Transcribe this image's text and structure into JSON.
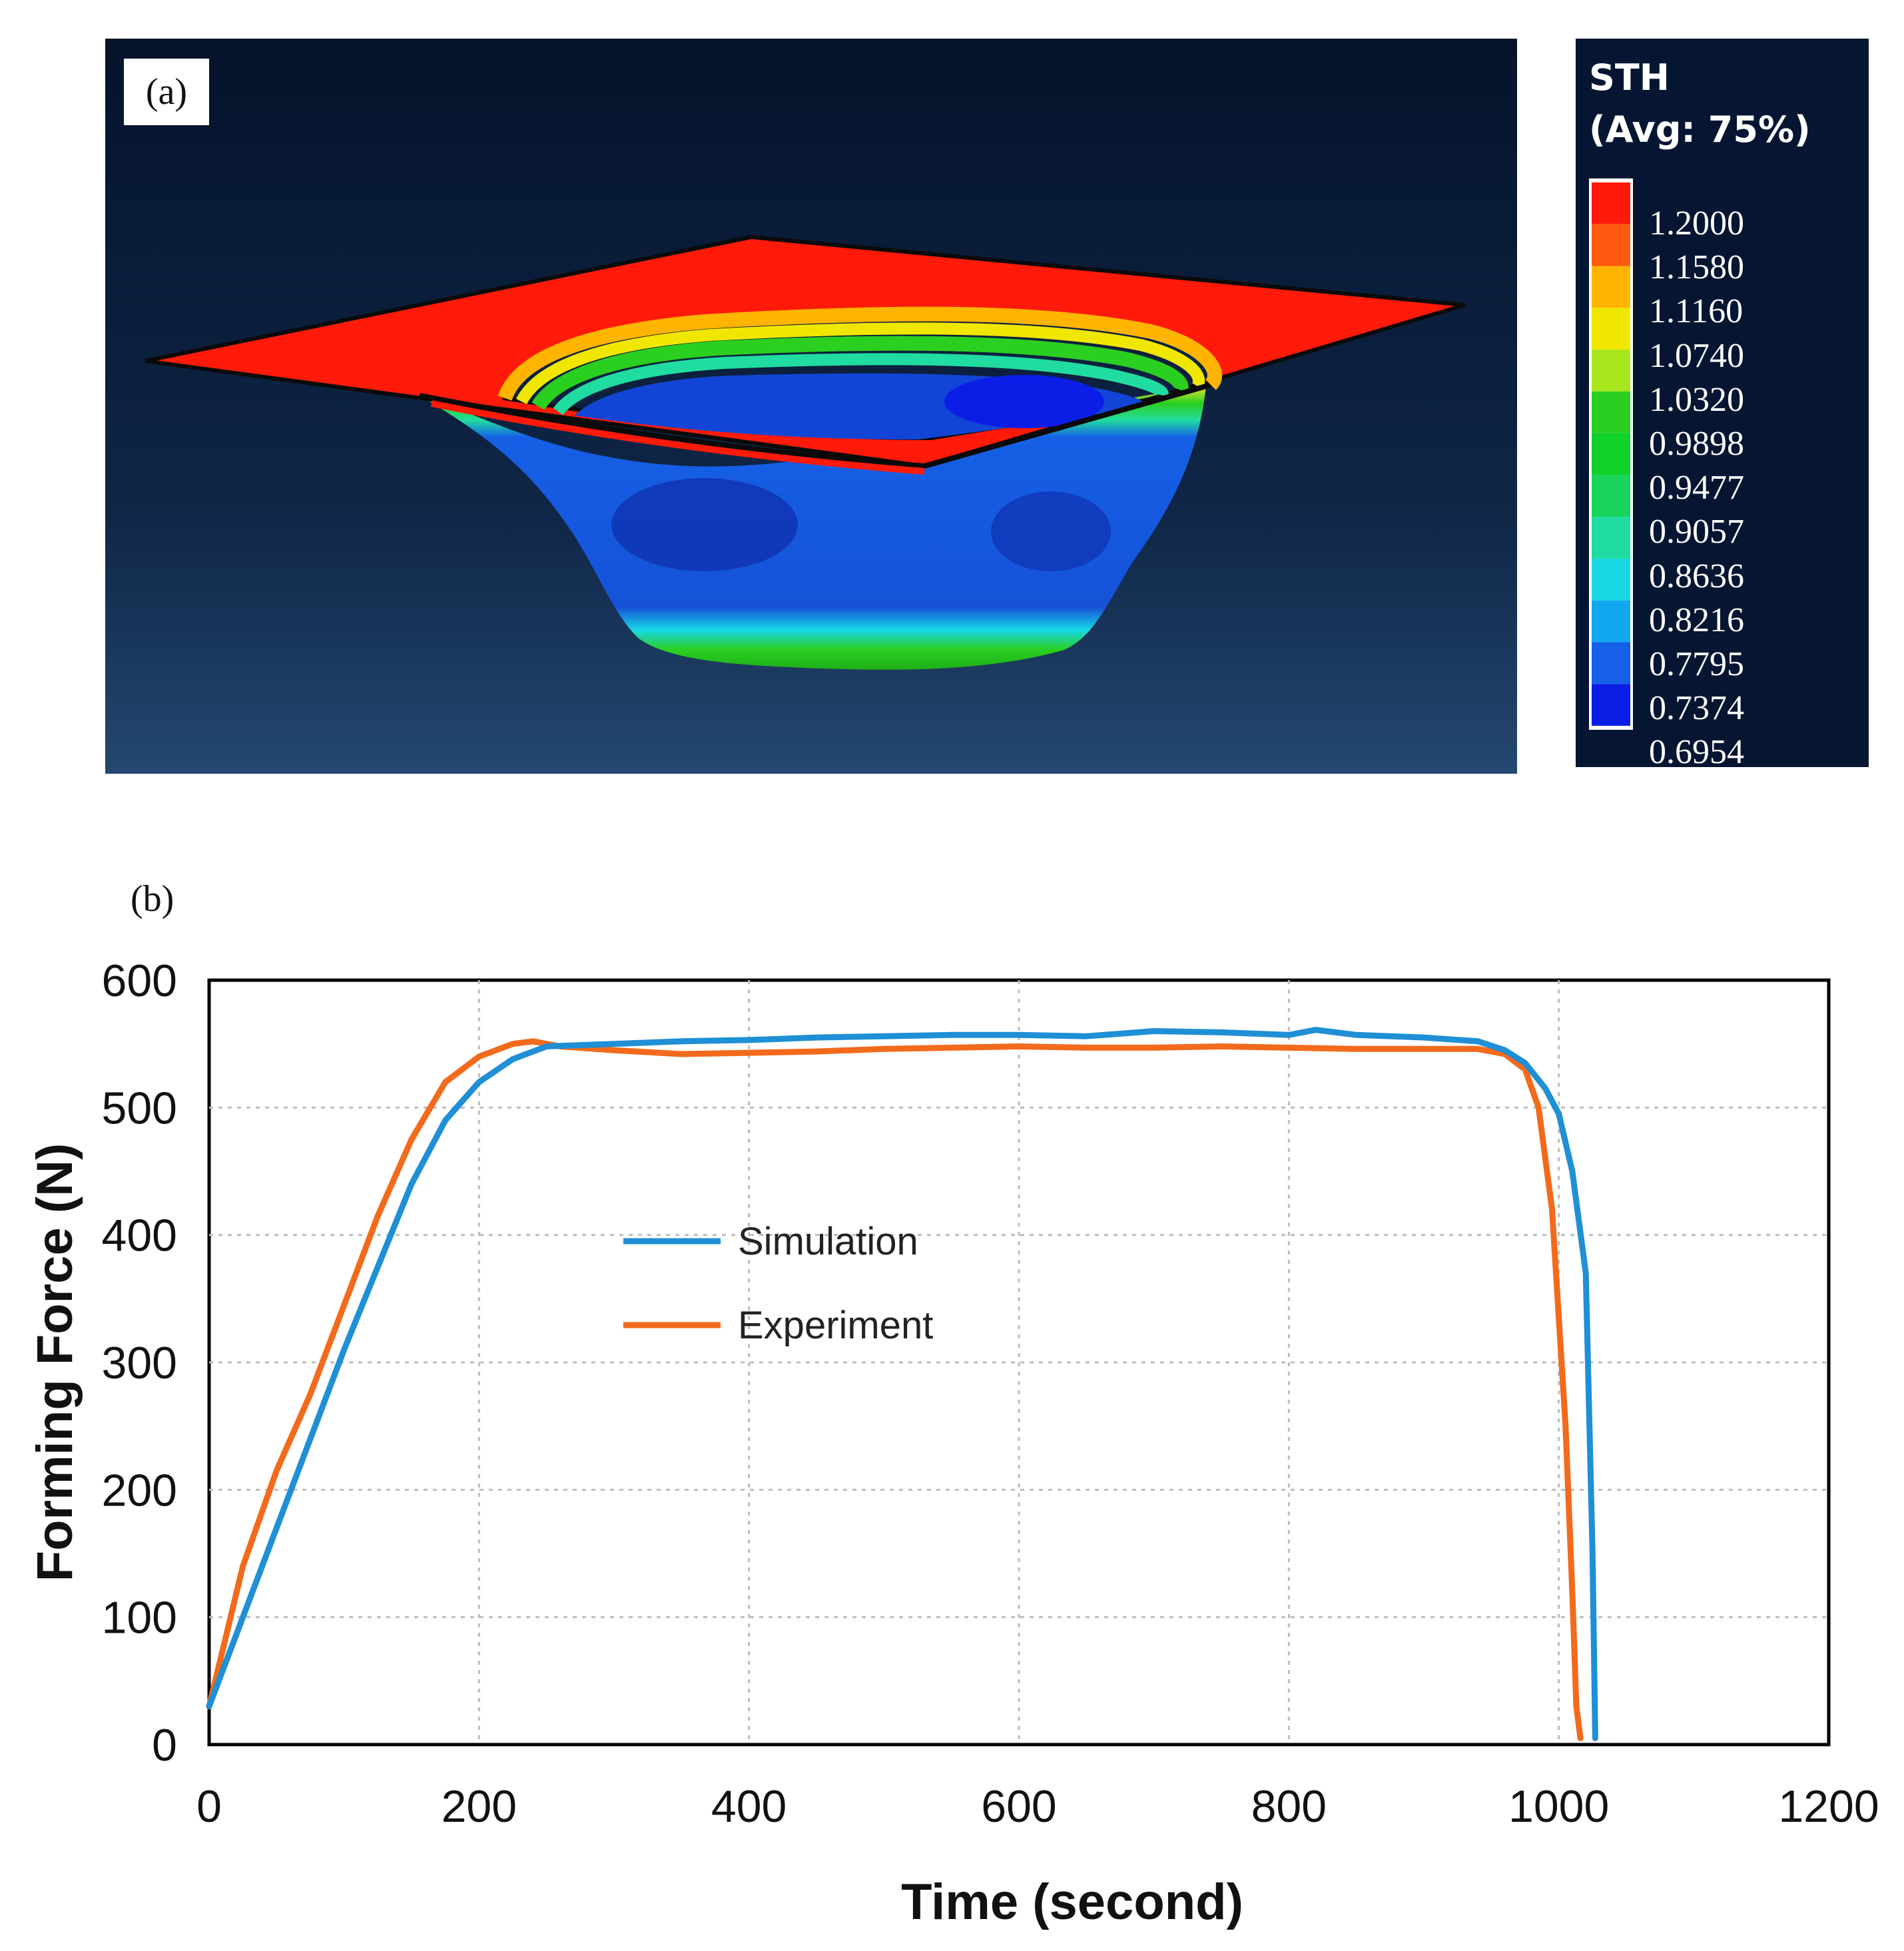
{
  "panel_a": {
    "label": "(a)",
    "legend_title_1": "STH",
    "legend_title_2": "(Avg: 75%)",
    "legend_values": [
      "1.2000",
      "1.1580",
      "1.1160",
      "1.0740",
      "1.0320",
      "0.9898",
      "0.9477",
      "0.9057",
      "0.8636",
      "0.8216",
      "0.7795",
      "0.7374",
      "0.6954"
    ],
    "legend_colors": [
      "#ff1a0a",
      "#ff5a10",
      "#ffb400",
      "#f0e600",
      "#a8e61e",
      "#2bcf20",
      "#10d02a",
      "#18d45a",
      "#20dca0",
      "#18d8e6",
      "#12a8f0",
      "#1560e6",
      "#0a1ee6"
    ]
  },
  "chart_data": {
    "label": "(b)",
    "type": "line",
    "xlabel": "Time (second)",
    "ylabel": "Forming Force (N)",
    "xlim": [
      0,
      1200
    ],
    "ylim": [
      0,
      600
    ],
    "xticks": [
      0,
      200,
      400,
      600,
      800,
      1000,
      1200
    ],
    "yticks": [
      0,
      100,
      200,
      300,
      400,
      500,
      600
    ],
    "grid": true,
    "legend_position": "center-left",
    "series": [
      {
        "name": "Simulation",
        "color": "#1f8fd6",
        "x": [
          0,
          25,
          50,
          75,
          100,
          125,
          150,
          175,
          200,
          225,
          250,
          300,
          350,
          400,
          450,
          500,
          550,
          600,
          650,
          700,
          750,
          800,
          820,
          850,
          900,
          940,
          960,
          975,
          990,
          1000,
          1010,
          1020,
          1025,
          1027
        ],
        "y": [
          30,
          100,
          170,
          240,
          310,
          375,
          440,
          490,
          520,
          538,
          548,
          550,
          552,
          553,
          555,
          556,
          557,
          557,
          556,
          560,
          559,
          557,
          561,
          557,
          555,
          552,
          545,
          535,
          515,
          495,
          450,
          370,
          150,
          5
        ]
      },
      {
        "name": "Experiment",
        "color": "#f26a1b",
        "x": [
          0,
          25,
          50,
          75,
          100,
          125,
          150,
          175,
          200,
          225,
          240,
          260,
          300,
          350,
          400,
          450,
          500,
          550,
          600,
          650,
          700,
          750,
          800,
          850,
          900,
          940,
          960,
          975,
          985,
          995,
          1005,
          1010,
          1013,
          1016
        ],
        "y": [
          30,
          140,
          215,
          275,
          345,
          415,
          475,
          520,
          540,
          550,
          552,
          548,
          545,
          542,
          543,
          544,
          546,
          547,
          548,
          547,
          547,
          548,
          547,
          546,
          546,
          546,
          542,
          530,
          500,
          420,
          250,
          120,
          30,
          5
        ]
      }
    ]
  }
}
